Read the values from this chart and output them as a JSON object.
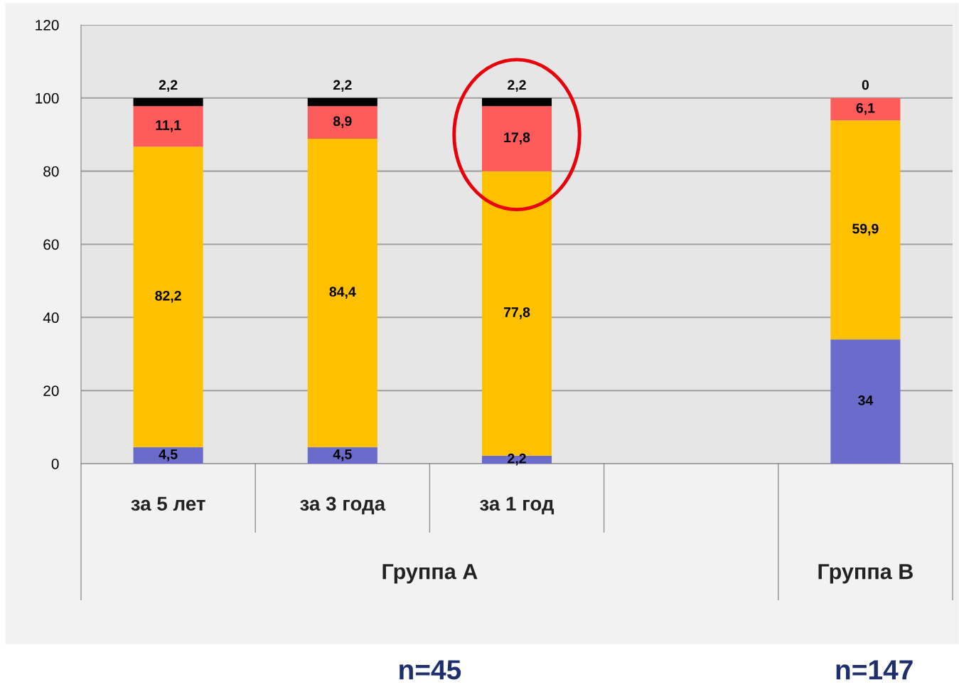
{
  "chart_data": {
    "type": "bar",
    "stacked": true,
    "categories": [
      "за 5 лет",
      "за 3 года",
      "за 1 год",
      null,
      null
    ],
    "series": [
      {
        "color": "#6b6bcc",
        "values": [
          4.5,
          4.5,
          2.2,
          null,
          34
        ],
        "value_labels": [
          "4,5",
          "4,5",
          "2,2",
          null,
          "34"
        ]
      },
      {
        "color": "#ffc000",
        "values": [
          82.2,
          84.4,
          77.8,
          null,
          59.9
        ],
        "value_labels": [
          "82,2",
          "84,4",
          "77,8",
          null,
          "59,9"
        ]
      },
      {
        "color": "#ff5b5b",
        "values": [
          11.1,
          8.9,
          17.8,
          null,
          6.1
        ],
        "value_labels": [
          "11,1",
          "8,9",
          "17,8",
          null,
          "6,1"
        ]
      },
      {
        "color": "#000000",
        "values": [
          2.2,
          2.2,
          2.2,
          null,
          0
        ],
        "value_labels": [
          "2,2",
          "2,2",
          "2,2",
          null,
          "0"
        ]
      }
    ],
    "ylim": [
      0,
      120
    ],
    "yticks": [
      0,
      20,
      40,
      60,
      80,
      100,
      120
    ],
    "grid": "y",
    "legend": false,
    "annotations": [
      "Группа А",
      "Группа В",
      "n=45",
      "n=147"
    ]
  }
}
